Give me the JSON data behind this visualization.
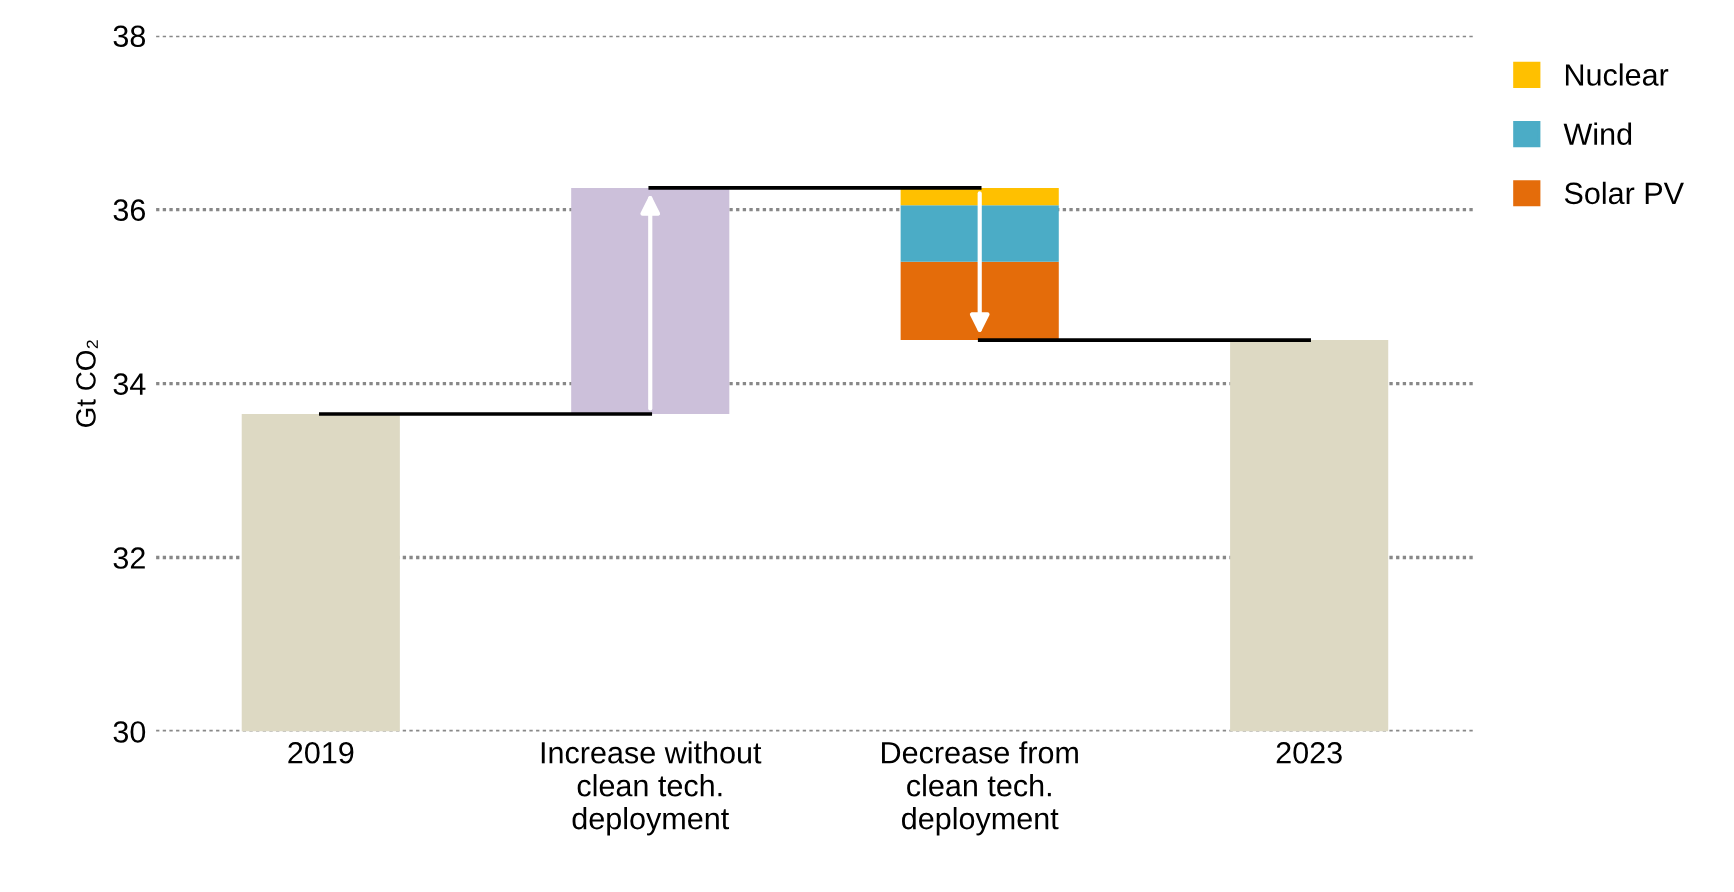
{
  "chart_data": {
    "type": "bar",
    "ylabel": "Gt CO₂",
    "categories": [
      "2019",
      "Increase without clean tech. deployment",
      "Decrease from clean tech. deployment",
      "2023"
    ],
    "series": [
      {
        "color": "#ddd9c3",
        "values": [
          3.65,
          null,
          null,
          4.5
        ],
        "base": [
          30,
          null,
          null,
          30
        ]
      },
      {
        "color": "#ccc0da",
        "values": [
          null,
          2.6,
          null,
          null
        ],
        "base": [
          null,
          33.65,
          null,
          null
        ]
      },
      {
        "name": "Solar PV",
        "color": "#e46c0a",
        "values": [
          null,
          null,
          0.9,
          null
        ],
        "base": [
          null,
          null,
          34.5,
          null
        ]
      },
      {
        "name": "Wind",
        "color": "#4bacc6",
        "values": [
          null,
          null,
          0.65,
          null
        ],
        "base": [
          null,
          null,
          35.4,
          null
        ]
      },
      {
        "name": "Nuclear",
        "color": "#ffc000",
        "values": [
          null,
          null,
          0.2,
          null
        ],
        "base": [
          null,
          null,
          36.05,
          null
        ]
      },
      {
        "type": "line",
        "color": "#000000",
        "values": [
          33.65,
          33.65,
          null,
          null
        ],
        "marker": "none"
      },
      {
        "type": "line",
        "color": "#000000",
        "values": [
          null,
          36.25,
          36.25,
          null
        ],
        "marker": "none"
      },
      {
        "type": "line",
        "color": "#000000",
        "values": [
          null,
          null,
          34.5,
          34.5
        ],
        "marker": "none"
      }
    ],
    "ylim": [
      30,
      38
    ],
    "yticks": [
      30,
      32,
      34,
      36,
      38
    ],
    "grid": "y",
    "legend": "top right"
  }
}
